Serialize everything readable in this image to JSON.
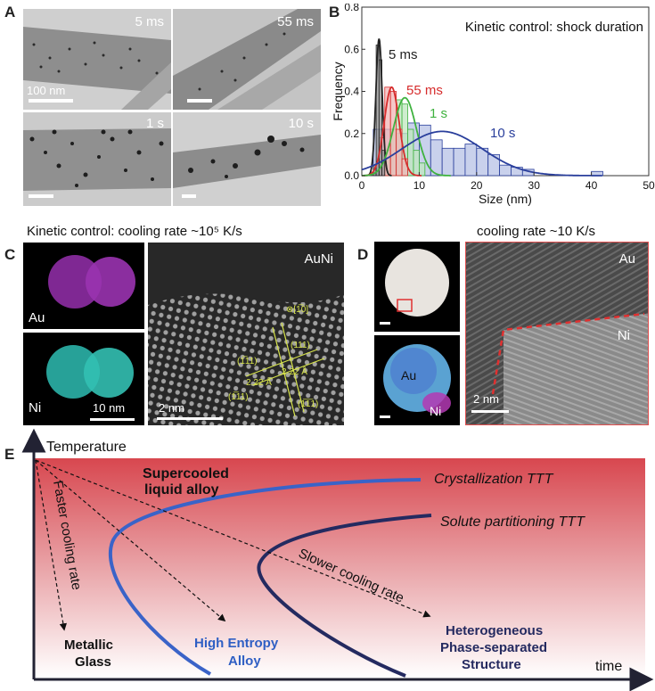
{
  "panelA": {
    "letter": "A",
    "images": [
      {
        "label": "5 ms",
        "scale": "100 nm"
      },
      {
        "label": "55 ms",
        "scale": ""
      },
      {
        "label": "1 s",
        "scale": ""
      },
      {
        "label": "10 s",
        "scale": ""
      }
    ]
  },
  "panelB": {
    "letter": "B"
  },
  "panelC": {
    "letter": "C",
    "title": "Kinetic control: cooling rate  ~10⁵ K/s",
    "map_au": "Au",
    "map_ni": "Ni",
    "map_scale": "10 nm",
    "hr_label": "AuNi",
    "hr_scale": "2 nm",
    "zone_axis": "⊗[1̅0]",
    "planes": [
      "(1̅11)",
      "(111)",
      "(1̅11)",
      "(1̅1̅1)"
    ],
    "spacing_a": "2.22 Å",
    "spacing_b": "2.22 Å"
  },
  "panelD": {
    "letter": "D",
    "title": "cooling rate ~10 K/s",
    "map_au": "Au",
    "map_ni": "Ni",
    "hr_au": "Au",
    "hr_ni": "Ni",
    "hr_scale": "2 nm"
  },
  "panelE": {
    "letter": "E",
    "y_axis": "Temperature",
    "x_axis": "time",
    "curve1": "Crystallization TTT",
    "curve2": "Solute partitioning TTT",
    "region_top_1": "Supercooled",
    "region_top_2": "liquid alloy",
    "arrow_fast": "Faster cooling rate",
    "arrow_slow": "Slower cooling rate",
    "out1_a": "Metallic",
    "out1_b": "Glass",
    "out2_a": "High Entropy",
    "out2_b": "Alloy",
    "out3_a": "Heterogeneous",
    "out3_b": "Phase-separated",
    "out3_c": "Structure"
  },
  "chart_data": {
    "type": "bar",
    "title": "Kinetic control: shock duration",
    "xlabel": "Size (nm)",
    "ylabel": "Frequency",
    "xlim": [
      0,
      50
    ],
    "ylim": [
      0,
      0.8
    ],
    "xticks": [
      0,
      10,
      20,
      30,
      40,
      50
    ],
    "yticks": [
      0.0,
      0.2,
      0.4,
      0.6,
      0.8
    ],
    "series": [
      {
        "name": "5 ms",
        "color": "#222222",
        "bins": [
          [
            2.0,
            2.5,
            0.05
          ],
          [
            2.5,
            3.0,
            0.62
          ],
          [
            3.0,
            3.5,
            0.55
          ],
          [
            3.5,
            4.0,
            0.12
          ]
        ],
        "fit": {
          "mean": 3.0,
          "sd": 0.55,
          "peak": 0.65
        }
      },
      {
        "name": "55 ms",
        "color": "#d62c2c",
        "bins": [
          [
            3,
            4,
            0.18
          ],
          [
            4,
            5,
            0.42
          ],
          [
            5,
            6,
            0.4
          ],
          [
            6,
            7,
            0.22
          ],
          [
            7,
            8,
            0.08
          ]
        ],
        "fit": {
          "mean": 5.2,
          "sd": 1.3,
          "peak": 0.42
        }
      },
      {
        "name": "1 s",
        "color": "#3fb23f",
        "bins": [
          [
            4,
            5,
            0.12
          ],
          [
            5,
            6,
            0.22
          ],
          [
            6,
            7,
            0.36
          ],
          [
            7,
            8,
            0.34
          ],
          [
            8,
            9,
            0.22
          ],
          [
            9,
            10,
            0.12
          ],
          [
            10,
            11,
            0.06
          ]
        ],
        "fit": {
          "mean": 7.5,
          "sd": 2.0,
          "peak": 0.37
        }
      },
      {
        "name": "10 s",
        "color": "#2a3f9c",
        "bins": [
          [
            2,
            4,
            0.22
          ],
          [
            4,
            6,
            0.22
          ],
          [
            6,
            8,
            0.2
          ],
          [
            8,
            10,
            0.25
          ],
          [
            10,
            12,
            0.24
          ],
          [
            12,
            14,
            0.17
          ],
          [
            14,
            16,
            0.13
          ],
          [
            16,
            18,
            0.13
          ],
          [
            18,
            20,
            0.15
          ],
          [
            20,
            22,
            0.13
          ],
          [
            22,
            24,
            0.1
          ],
          [
            24,
            26,
            0.05
          ],
          [
            26,
            28,
            0.04
          ],
          [
            28,
            30,
            0.03
          ],
          [
            40,
            42,
            0.02
          ]
        ],
        "fit": {
          "mean": 14.0,
          "sd": 7.0,
          "peak": 0.21
        }
      }
    ]
  }
}
